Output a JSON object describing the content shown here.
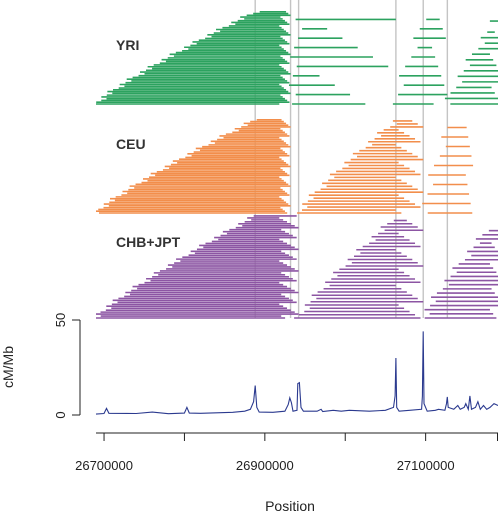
{
  "chart_data": {
    "type": "line",
    "xlabel": "Position",
    "ylabel": "cM/Mb",
    "xlim": [
      26690000,
      27190000
    ],
    "ylim": [
      0,
      50
    ],
    "x_ticks": [
      26700000,
      26800000,
      26900000,
      27000000,
      27100000,
      27200000
    ],
    "x_tick_labels": [
      "26700000",
      "26900000",
      "27100000"
    ],
    "y_ticks": [
      0,
      50
    ],
    "y_tick_labels": [
      "0",
      "50"
    ],
    "hotspot_lines": [
      26888000,
      26932000,
      26942000,
      27063000,
      27097000,
      27127000
    ],
    "populations": [
      {
        "name": "YRI",
        "color": "#2ca25f",
        "clusters": [
          [
            26690000,
            26888000,
            26918000,
            26932000
          ],
          [
            26932000,
            26942000,
            26968000,
            27063000
          ],
          [
            27063000,
            27097000,
            27108000,
            27127000
          ],
          [
            27127000,
            27190000,
            27180000,
            27200000
          ]
        ]
      },
      {
        "name": "CEU",
        "color": "#f28e4b",
        "clusters": [
          [
            26690000,
            26888000,
            26918000,
            26932000
          ],
          [
            26942000,
            27063000,
            27063000,
            27097000
          ],
          [
            27097000,
            27127000,
            27150000,
            27160000
          ]
        ]
      },
      {
        "name": "CHB+JPT",
        "color": "#8c55a3",
        "clusters": [
          [
            26690000,
            26888000,
            26918000,
            26942000
          ],
          [
            26942000,
            27063000,
            27063000,
            27097000
          ],
          [
            27097000,
            27190000,
            27180000,
            27200000
          ]
        ]
      }
    ],
    "series": [
      {
        "values": [
          [
            26690000,
            0.5
          ],
          [
            26700000,
            0.8
          ],
          [
            26703000,
            3.5
          ],
          [
            26706000,
            0.9
          ],
          [
            26740000,
            0.8
          ],
          [
            26760000,
            1.5
          ],
          [
            26780000,
            0.7
          ],
          [
            26800000,
            1
          ],
          [
            26803000,
            4
          ],
          [
            26806000,
            1
          ],
          [
            26820000,
            0.9
          ],
          [
            26845000,
            1.2
          ],
          [
            26860000,
            1.4
          ],
          [
            26875000,
            2
          ],
          [
            26882000,
            3
          ],
          [
            26886000,
            7
          ],
          [
            26888000,
            15.5
          ],
          [
            26890000,
            4
          ],
          [
            26893000,
            1.5
          ],
          [
            26910000,
            1.4
          ],
          [
            26925000,
            2
          ],
          [
            26929000,
            5.5
          ],
          [
            26931000,
            9
          ],
          [
            26933000,
            6.5
          ],
          [
            26935000,
            2
          ],
          [
            26940000,
            2.5
          ],
          [
            26941000,
            16.5
          ],
          [
            26943000,
            17
          ],
          [
            26945000,
            4
          ],
          [
            26948000,
            2
          ],
          [
            26965000,
            2
          ],
          [
            26970000,
            3
          ],
          [
            26972000,
            1.8
          ],
          [
            26985000,
            2.5
          ],
          [
            26995000,
            2
          ],
          [
            27005000,
            2.5
          ],
          [
            27030000,
            2
          ],
          [
            27050000,
            2.5
          ],
          [
            27060000,
            4
          ],
          [
            27062000,
            10
          ],
          [
            27063000,
            30
          ],
          [
            27064000,
            4
          ],
          [
            27067000,
            2
          ],
          [
            27080000,
            2.5
          ],
          [
            27095000,
            3
          ],
          [
            27096000,
            10
          ],
          [
            27097000,
            44
          ],
          [
            27098000,
            6
          ],
          [
            27102000,
            2
          ],
          [
            27112000,
            2.5
          ],
          [
            27116000,
            3
          ],
          [
            27124000,
            2.5
          ],
          [
            27126000,
            6
          ],
          [
            27127000,
            9.5
          ],
          [
            27128000,
            4
          ],
          [
            27135000,
            3
          ],
          [
            27140000,
            5
          ],
          [
            27143000,
            3
          ],
          [
            27148000,
            4
          ],
          [
            27150000,
            6
          ],
          [
            27153000,
            3
          ],
          [
            27155000,
            10
          ],
          [
            27157000,
            3
          ],
          [
            27162000,
            4
          ],
          [
            27165000,
            7
          ],
          [
            27168000,
            3
          ],
          [
            27172000,
            5
          ],
          [
            27176000,
            3
          ],
          [
            27180000,
            4
          ],
          [
            27185000,
            6
          ],
          [
            27190000,
            5
          ]
        ]
      }
    ]
  }
}
